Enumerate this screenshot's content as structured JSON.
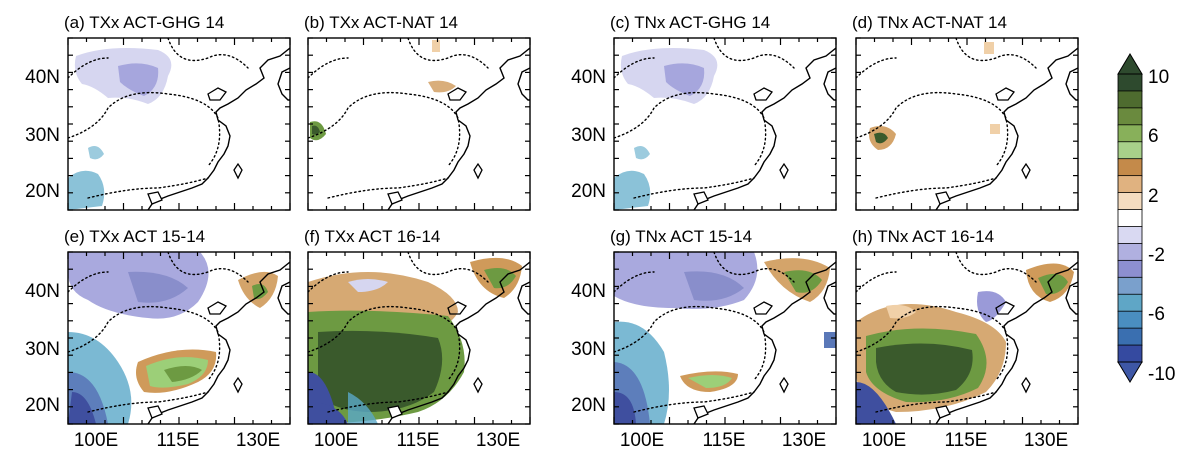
{
  "figure": {
    "panels": [
      {
        "id": "a",
        "title": "(a) TXx ACT-GHG 14",
        "pattern": "weak_cool_north"
      },
      {
        "id": "b",
        "title": "(b) TXx ACT-NAT 14",
        "pattern": "sparse_warm"
      },
      {
        "id": "c",
        "title": "(c) TNx ACT-GHG 14",
        "pattern": "weak_cool_north"
      },
      {
        "id": "d",
        "title": "(d) TNx ACT-NAT 14",
        "pattern": "sparse_warm2"
      },
      {
        "id": "e",
        "title": "(e) TXx ACT 15-14",
        "pattern": "south_warm_cool_north"
      },
      {
        "id": "f",
        "title": "(f) TXx ACT 16-14",
        "pattern": "strong_warm"
      },
      {
        "id": "g",
        "title": "(g) TNx ACT 15-14",
        "pattern": "south_warm_cool_north2"
      },
      {
        "id": "h",
        "title": "(h) TNx ACT 16-14",
        "pattern": "strong_warm2"
      }
    ],
    "x_ticks": [
      "100E",
      "115E",
      "130E"
    ],
    "y_ticks": [
      "40N",
      "30N",
      "20N"
    ],
    "colorbar": {
      "labels": [
        "10",
        "6",
        "2",
        "-2",
        "-6",
        "-10"
      ],
      "colors": [
        "#2e4a2e",
        "#4e6b2f",
        "#6a8a3e",
        "#88b05a",
        "#a8d08a",
        "#c48a4a",
        "#e0b280",
        "#f4dcc0",
        "#ffffff",
        "#d9d9f2",
        "#b0b0e0",
        "#8d8fd0",
        "#7aa0cc",
        "#5fa6c6",
        "#4a8ec0",
        "#3a6fb0",
        "#354aa0"
      ],
      "top_color": "#2e4a2e",
      "bottom_color": "#3e57a6"
    },
    "palette": {
      "cool_strong": "#3f4f9f",
      "cool_mid": "#5a78b8",
      "cool_light": "#9a9ad8",
      "cool_pale": "#d6d6f0",
      "teal": "#5aa8c8",
      "warm_pale": "#f0d0a8",
      "warm_orange": "#cf9a5a",
      "green_light": "#9ccf78",
      "green_mid": "#6d9a42",
      "green_dark": "#3a5a2c"
    }
  }
}
